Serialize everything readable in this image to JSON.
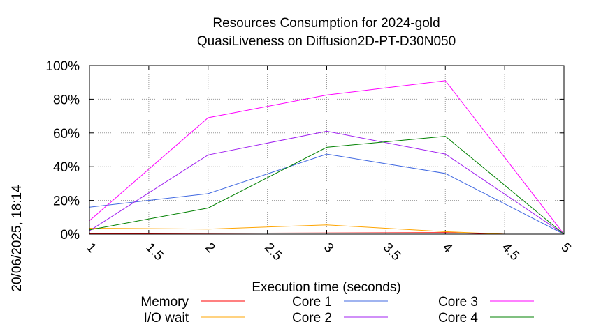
{
  "side_label": "20/06/2025, 18:14",
  "chart_data": {
    "type": "line",
    "title": [
      "Resources Consumption for 2024-gold",
      "QuasiLiveness on Diffusion2D-PT-D30N050"
    ],
    "xlabel": "Execution time (seconds)",
    "ylabel": "",
    "xlim": [
      1,
      5
    ],
    "ylim": [
      0,
      100
    ],
    "x_ticks": [
      "1",
      "1.5",
      "2",
      "2.5",
      "3",
      "3.5",
      "4",
      "4.5",
      "5"
    ],
    "y_ticks": [
      "0%",
      "20%",
      "40%",
      "60%",
      "80%",
      "100%"
    ],
    "grid": true,
    "legend_position": "bottom",
    "series": [
      {
        "name": "Memory",
        "color": "#ff0000",
        "x": [
          1,
          2,
          3,
          4,
          4.5,
          5
        ],
        "values": [
          0.3,
          0.5,
          0.7,
          0.9,
          0,
          0
        ]
      },
      {
        "name": "I/O wait",
        "color": "#ffa500",
        "x": [
          1,
          2,
          3,
          4,
          4.5,
          5
        ],
        "values": [
          3.5,
          3,
          5.5,
          1.5,
          0,
          0
        ]
      },
      {
        "name": "Core 1",
        "color": "#4169e1",
        "x": [
          1,
          2,
          3,
          4,
          5
        ],
        "values": [
          16,
          24,
          47.5,
          36,
          0
        ]
      },
      {
        "name": "Core 2",
        "color": "#a020f0",
        "x": [
          1,
          2,
          3,
          4,
          5
        ],
        "values": [
          2,
          47,
          61,
          47.5,
          0
        ]
      },
      {
        "name": "Core 3",
        "color": "#ff00ff",
        "x": [
          1,
          2,
          3,
          4,
          5
        ],
        "values": [
          8,
          69,
          82.5,
          91,
          0
        ]
      },
      {
        "name": "Core 4",
        "color": "#008000",
        "x": [
          1,
          2,
          3,
          4,
          5
        ],
        "values": [
          2.5,
          15.5,
          51.5,
          58,
          0
        ]
      }
    ]
  }
}
